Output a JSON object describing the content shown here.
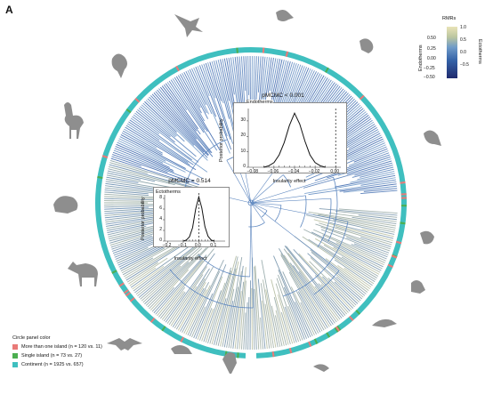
{
  "panel_label": "A",
  "colorbar": {
    "title": "RMRs",
    "ticks": [
      "1.0",
      "0.5",
      "0.0",
      "−0.5"
    ],
    "left_ticks": [
      "0.50",
      "0.25",
      "0.00",
      "−0.25",
      "−0.50"
    ],
    "left_side_label": "Endotherms",
    "right_side_label": "Ectotherms",
    "colors": {
      "low": "#1f2a6e",
      "mid": "#4a7fc0",
      "high": "#e9e3b7"
    }
  },
  "circle_legend": {
    "title": "Circle panel color",
    "items": [
      {
        "label": "More than one island (n = 120 vs. 11)",
        "color": "#e97a78"
      },
      {
        "label": "Single island (n = 73 vs. 27)",
        "color": "#4caf50"
      },
      {
        "label": "Continent (n = 1925 vs. 657)",
        "color": "#3fbfbf"
      }
    ]
  },
  "insets": {
    "endotherms": {
      "title": "pMCMC < 0.001",
      "label": "Endotherms",
      "xlabel": "Insularity effect",
      "ylabel": "Posterior probability",
      "xticks": [
        "−0.08",
        "−0.06",
        "−0.04",
        "−0.02",
        "0.00"
      ],
      "yticks": [
        "0",
        "10",
        "20",
        "30"
      ]
    },
    "ectotherms": {
      "title": "pMCMC = 0.514",
      "label": "Ectotherms",
      "xlabel": "Insularity effect",
      "ylabel": "Posterior probability",
      "xticks": [
        "−0.2",
        "−0.1",
        "0.0",
        "0.1"
      ],
      "yticks": [
        "0",
        "2",
        "4",
        "6",
        "8"
      ]
    }
  },
  "chart_data": [
    {
      "type": "line",
      "title": "pMCMC < 0.001",
      "series": [
        {
          "name": "Endotherms"
        }
      ],
      "xlabel": "Insularity effect",
      "ylabel": "Posterior probability",
      "x": [
        -0.07,
        -0.065,
        -0.06,
        -0.055,
        -0.05,
        -0.045,
        -0.04,
        -0.035,
        -0.03,
        -0.025,
        -0.02,
        -0.015,
        -0.01
      ],
      "values": [
        0,
        1,
        3,
        8,
        16,
        27,
        35,
        28,
        17,
        8,
        3,
        1,
        0
      ],
      "xlim": [
        -0.085,
        0.005
      ],
      "ylim": [
        0,
        38
      ],
      "reference_line_x": 0.0
    },
    {
      "type": "line",
      "title": "pMCMC = 0.514",
      "series": [
        {
          "name": "Ectotherms"
        }
      ],
      "xlabel": "Insularity effect",
      "ylabel": "Posterior probability",
      "x": [
        -0.1,
        -0.08,
        -0.06,
        -0.04,
        -0.02,
        0.0,
        0.02,
        0.04,
        0.06,
        0.08,
        0.1
      ],
      "values": [
        0,
        0.2,
        0.8,
        2.5,
        6.0,
        8.3,
        6.2,
        2.7,
        0.9,
        0.2,
        0
      ],
      "xlim": [
        -0.22,
        0.17
      ],
      "ylim": [
        0,
        9
      ],
      "reference_line_x": 0.0
    }
  ]
}
